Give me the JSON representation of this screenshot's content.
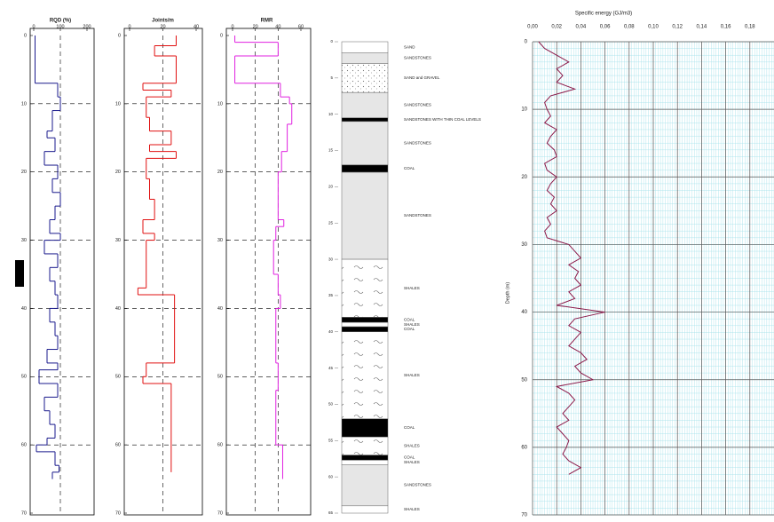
{
  "chart_data": [
    {
      "type": "profile",
      "title": "RQD (%)",
      "color": "#1a1a8c",
      "xlim": [
        0,
        200
      ],
      "xticks": [
        0,
        100,
        200
      ],
      "ylim": [
        0,
        70
      ],
      "yticks": [
        0,
        10,
        20,
        30,
        40,
        50,
        60,
        70
      ],
      "depths": [
        0,
        7,
        9,
        11,
        14,
        15,
        17,
        19,
        21,
        23,
        25,
        27,
        29,
        30,
        32,
        34,
        36,
        38,
        40,
        42,
        44,
        46,
        48,
        49,
        51,
        53,
        55,
        57,
        59,
        60,
        61,
        63,
        64,
        65
      ],
      "values": [
        5,
        90,
        100,
        70,
        50,
        80,
        40,
        90,
        70,
        100,
        80,
        60,
        100,
        40,
        90,
        60,
        80,
        90,
        60,
        80,
        90,
        50,
        90,
        20,
        90,
        40,
        60,
        80,
        50,
        10,
        80,
        95,
        70
      ]
    },
    {
      "type": "profile",
      "title": "Joints/m",
      "color": "#e01010",
      "xlim": [
        0,
        40
      ],
      "xticks": [
        0,
        20,
        40
      ],
      "ylim": [
        0,
        70
      ],
      "yticks": [
        0,
        10,
        20,
        30,
        40,
        50,
        60,
        70
      ],
      "depths": [
        0,
        1.5,
        3,
        7,
        8,
        9,
        12,
        14,
        16,
        17,
        18,
        21,
        24,
        27,
        29,
        30,
        37,
        38,
        48,
        50,
        51,
        64
      ],
      "values": [
        28,
        15,
        28,
        8,
        25,
        10,
        12,
        25,
        12,
        28,
        10,
        12,
        15,
        8,
        15,
        10,
        5,
        27,
        10,
        8,
        25
      ]
    },
    {
      "type": "profile",
      "title": "RMR",
      "color": "#e020e0",
      "xlim": [
        0,
        60
      ],
      "xticks": [
        0,
        20,
        40,
        60
      ],
      "ylim": [
        0,
        70
      ],
      "yticks": [
        0,
        10,
        20,
        30,
        40,
        50,
        60,
        70
      ],
      "depths": [
        0,
        1,
        3,
        7,
        9,
        10,
        13,
        17,
        20,
        27,
        28,
        30,
        35,
        38,
        40,
        48,
        52,
        60,
        65
      ],
      "values": [
        2,
        40,
        2,
        42,
        50,
        52,
        48,
        43,
        40,
        45,
        38,
        36,
        40,
        42,
        38,
        40,
        38,
        44
      ]
    },
    {
      "type": "column",
      "ylim": [
        0,
        65
      ],
      "yticks": [
        0,
        5,
        10,
        15,
        20,
        25,
        30,
        35,
        40,
        45,
        50,
        55,
        60,
        65
      ],
      "layers": [
        {
          "top": 0,
          "bottom": 1.5,
          "kind": "sand",
          "label": "SAND"
        },
        {
          "top": 1.5,
          "bottom": 3,
          "kind": "sandstone",
          "label": "SANDSTONES"
        },
        {
          "top": 3,
          "bottom": 7,
          "kind": "gravel",
          "label": "SAND and GRAVEL"
        },
        {
          "top": 7,
          "bottom": 10.5,
          "kind": "sandstone",
          "label": "SANDSTONES"
        },
        {
          "top": 10.5,
          "bottom": 11,
          "kind": "coal",
          "label": "SANDSTONES WITH THIN COAL LEVELS"
        },
        {
          "top": 11,
          "bottom": 17,
          "kind": "sandstone",
          "label": "SANDSTONES"
        },
        {
          "top": 17,
          "bottom": 18,
          "kind": "coal",
          "label": "COAL"
        },
        {
          "top": 18,
          "bottom": 30,
          "kind": "sandstone",
          "label": "SANDSTONES"
        },
        {
          "top": 30,
          "bottom": 38,
          "kind": "shale",
          "label": "SHALES"
        },
        {
          "top": 38,
          "bottom": 38.7,
          "kind": "coal",
          "label": "COAL"
        },
        {
          "top": 38.7,
          "bottom": 39.3,
          "kind": "shale",
          "label": "SHALES"
        },
        {
          "top": 39.3,
          "bottom": 40,
          "kind": "coal",
          "label": "COAL"
        },
        {
          "top": 40,
          "bottom": 52,
          "kind": "shale",
          "label": "SHALES"
        },
        {
          "top": 52,
          "bottom": 54.5,
          "kind": "coal",
          "label": "COAL"
        },
        {
          "top": 54.5,
          "bottom": 57,
          "kind": "shale",
          "label": "SHALES"
        },
        {
          "top": 57,
          "bottom": 57.7,
          "kind": "coal",
          "label": "COAL"
        },
        {
          "top": 57.7,
          "bottom": 58.3,
          "kind": "shale",
          "label": "SHALES"
        },
        {
          "top": 58.3,
          "bottom": 64,
          "kind": "sandstone",
          "label": "SANDSTONES"
        },
        {
          "top": 64,
          "bottom": 65,
          "kind": "shale",
          "label": "SHALES"
        }
      ]
    },
    {
      "type": "line",
      "title": "Specific energy (GJ/m3)",
      "ylabel": "Depth (m)",
      "color": "#8b1a4a",
      "grid": true,
      "xlim": [
        0,
        0.2
      ],
      "xticks": [
        {
          "value": 0,
          "label": "0,00"
        },
        {
          "value": 0.02,
          "label": "0,02"
        },
        {
          "value": 0.04,
          "label": "0,04"
        },
        {
          "value": 0.06,
          "label": "0,06"
        },
        {
          "value": 0.08,
          "label": "0,08"
        },
        {
          "value": 0.1,
          "label": "0,10"
        },
        {
          "value": 0.12,
          "label": "0,12"
        },
        {
          "value": 0.14,
          "label": "0,14"
        },
        {
          "value": 0.16,
          "label": "0,16"
        },
        {
          "value": 0.18,
          "label": "0,18"
        }
      ],
      "ylim": [
        0,
        70
      ],
      "yticks": [
        0,
        10,
        20,
        30,
        40,
        50,
        60,
        70
      ],
      "depths": [
        0,
        1,
        2,
        3,
        4,
        5,
        6,
        7,
        8,
        9,
        10,
        11,
        12,
        13,
        14,
        15,
        16,
        17,
        18,
        19,
        20,
        21,
        22,
        23,
        24,
        25,
        26,
        27,
        28,
        29,
        30,
        31,
        32,
        33,
        34,
        35,
        36,
        37,
        38,
        39,
        40,
        41,
        42,
        43,
        44,
        45,
        46,
        47,
        48,
        49,
        50,
        51,
        52,
        53,
        54,
        55,
        56,
        57,
        58,
        59,
        60,
        61,
        62,
        63,
        64
      ],
      "values": [
        0.005,
        0.01,
        0.02,
        0.03,
        0.02,
        0.025,
        0.02,
        0.035,
        0.015,
        0.01,
        0.012,
        0.015,
        0.01,
        0.02,
        0.015,
        0.012,
        0.018,
        0.02,
        0.01,
        0.012,
        0.02,
        0.015,
        0.012,
        0.018,
        0.015,
        0.02,
        0.012,
        0.015,
        0.01,
        0.012,
        0.03,
        0.035,
        0.04,
        0.03,
        0.038,
        0.035,
        0.04,
        0.03,
        0.035,
        0.02,
        0.06,
        0.035,
        0.03,
        0.04,
        0.035,
        0.03,
        0.04,
        0.045,
        0.035,
        0.04,
        0.05,
        0.02,
        0.03,
        0.035,
        0.03,
        0.025,
        0.03,
        0.02,
        0.025,
        0.03,
        0.028,
        0.025,
        0.03,
        0.04,
        0.03
      ]
    }
  ]
}
